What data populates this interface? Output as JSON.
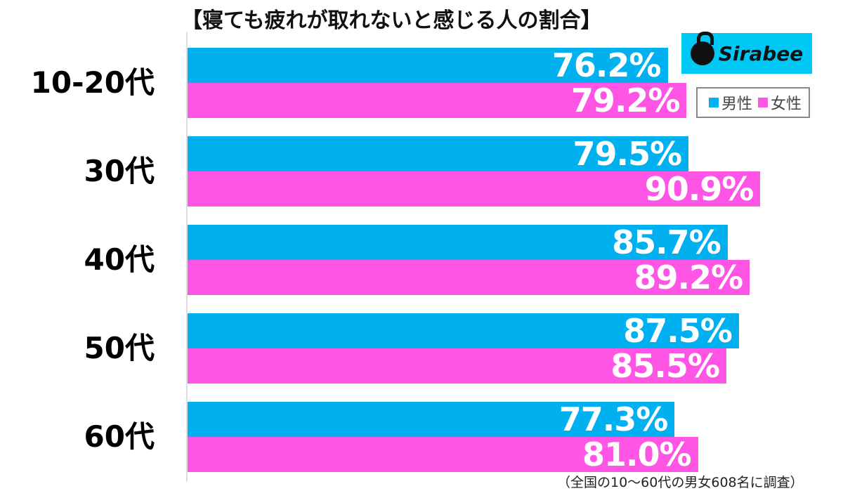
{
  "chart_data": {
    "type": "bar",
    "orientation": "horizontal",
    "title": "【寝ても疲れが取れないと感じる人の割合】",
    "categories": [
      "10-20代",
      "30代",
      "40代",
      "50代",
      "60代"
    ],
    "series": [
      {
        "name": "男性",
        "color": "#00b0ef",
        "values": [
          76.2,
          79.5,
          85.7,
          87.5,
          77.3
        ],
        "labels": [
          "76.2%",
          "79.5%",
          "85.7%",
          "87.5%",
          "77.3%"
        ]
      },
      {
        "name": "女性",
        "color": "#ff55e5",
        "values": [
          79.2,
          90.9,
          89.2,
          85.5,
          81.0
        ],
        "labels": [
          "79.2%",
          "90.9%",
          "89.2%",
          "85.5%",
          "81.0%"
        ]
      }
    ],
    "xlabel": "",
    "ylabel": "",
    "unit": "%",
    "grid": false,
    "legend_position": "top-right",
    "note": "（全国の10～60代の男女608名に調査）"
  },
  "brand": {
    "logo_text": "Sirabee",
    "color": "#00c8f5"
  },
  "legend": {
    "male": "男性",
    "female": "女性"
  }
}
